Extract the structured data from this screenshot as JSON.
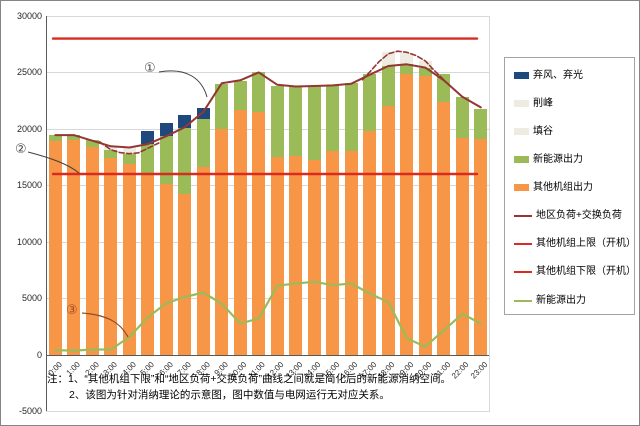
{
  "figure": {
    "kind": "excel-style combo chart (new energy accommodation schematic)"
  },
  "colors": {
    "curtail_blue": "#1F497D",
    "cream_fill": "#EEECE1",
    "newenergy_green": "#9BBB59",
    "other_orange": "#F79646",
    "load_maroon": "#943634",
    "limit_red": "#D92B20",
    "gridline": "#D8D8D8",
    "axis": "#595959",
    "text": "#262626"
  },
  "y_axis": {
    "min": -5000,
    "max": 30000,
    "step": 5000,
    "ticks": [
      "30000",
      "25000",
      "20000",
      "15000",
      "10000",
      "5000",
      "0",
      "-5000"
    ],
    "tick_values": [
      30000,
      25000,
      20000,
      15000,
      10000,
      5000,
      0,
      -5000
    ]
  },
  "x_axis": {
    "categories": [
      "0:00",
      "1:00",
      "2:00",
      "3:00",
      "4:00",
      "5:00",
      "6:00",
      "7:00",
      "8:00",
      "9:00",
      "10:00",
      "11:00",
      "12:00",
      "13:00",
      "14:00",
      "15:00",
      "16:00",
      "17:00",
      "18:00",
      "19:00",
      "20:00",
      "21:00",
      "22:00",
      "23:00"
    ]
  },
  "legend": {
    "items": [
      {
        "label": "弃风、弃光",
        "swatch": "bar",
        "color": "#1F497D"
      },
      {
        "label": "削峰",
        "swatch": "bar",
        "color": "#EEECE1"
      },
      {
        "label": "填谷",
        "swatch": "bar",
        "color": "#EEECE1"
      },
      {
        "label": "新能源出力",
        "swatch": "bar",
        "color": "#9BBB59"
      },
      {
        "label": "其他机组出力",
        "swatch": "bar",
        "color": "#F79646"
      },
      {
        "label": "地区负荷+交换负荷",
        "swatch": "line",
        "color": "#943634"
      },
      {
        "label": "其他机组上限（开机）",
        "swatch": "line",
        "color": "#D92B20"
      },
      {
        "label": "其他机组下限（开机）",
        "swatch": "line",
        "color": "#D92B20"
      },
      {
        "label": "新能源出力",
        "swatch": "line",
        "color": "#9BBB59"
      }
    ]
  },
  "notes": {
    "line1": "注：1、“其他机组下限”和“地区负荷+交换负荷”曲线之间就是简化后的新能源消纳空间。",
    "line2": "2、该图为针对消纳理论的示意图，图中数值与电网运行无对应关系。"
  },
  "annotations": [
    {
      "label": "①",
      "points_to": "地区负荷+交换负荷曲线"
    },
    {
      "label": "②",
      "points_to": "其他机组下限（开机）"
    },
    {
      "label": "③",
      "points_to": "新能源出力曲线"
    }
  ],
  "chart_data": {
    "type": "combo-stacked-bar-line",
    "ylim": [
      -5000,
      30000
    ],
    "grid": true,
    "legend_position": "right",
    "categories": [
      "0:00",
      "1:00",
      "2:00",
      "3:00",
      "4:00",
      "5:00",
      "6:00",
      "7:00",
      "8:00",
      "9:00",
      "10:00",
      "11:00",
      "12:00",
      "13:00",
      "14:00",
      "15:00",
      "16:00",
      "17:00",
      "18:00",
      "19:00",
      "20:00",
      "21:00",
      "22:00",
      "23:00"
    ],
    "series": [
      {
        "name": "其他机组出力",
        "type": "bar",
        "stack": "output",
        "color": "#F79646",
        "values": [
          18900,
          19000,
          18400,
          17400,
          16900,
          16100,
          15100,
          14200,
          16600,
          20000,
          21650,
          21450,
          17500,
          17600,
          17200,
          18000,
          18050,
          19800,
          22000,
          24830,
          24700,
          22400,
          19150,
          19100
        ]
      },
      {
        "name": "新能源出力",
        "type": "bar",
        "stack": "output",
        "color": "#9BBB59",
        "values": [
          550,
          500,
          650,
          750,
          900,
          2550,
          4300,
          5900,
          4250,
          4000,
          2600,
          3550,
          6300,
          6200,
          6600,
          5900,
          6050,
          5100,
          3570,
          890,
          730,
          2500,
          3700,
          2700
        ]
      },
      {
        "name": "弃风、弃光",
        "type": "bar",
        "stack": "output",
        "color": "#1F497D",
        "values": [
          0,
          0,
          0,
          0,
          0,
          1150,
          1150,
          1150,
          1000,
          0,
          0,
          0,
          0,
          0,
          0,
          0,
          0,
          0,
          0,
          0,
          0,
          0,
          0,
          0
        ]
      },
      {
        "name": "填谷",
        "type": "bar",
        "stack": "output",
        "color": "#EEECE1",
        "values": [
          0,
          0,
          0,
          300,
          550,
          0,
          0,
          0,
          0,
          0,
          0,
          0,
          0,
          0,
          0,
          0,
          0,
          0,
          0,
          0,
          0,
          0,
          0,
          0
        ]
      },
      {
        "name": "削峰",
        "type": "bar",
        "stack": "output",
        "color": "#EEECE1",
        "values": [
          0,
          0,
          0,
          0,
          0,
          0,
          0,
          0,
          0,
          0,
          0,
          0,
          0,
          0,
          0,
          0,
          0,
          0,
          1230,
          1030,
          570,
          0,
          0,
          0
        ]
      },
      {
        "name": "地区负荷+交换负荷",
        "type": "line",
        "color": "#943634",
        "values": [
          19450,
          19450,
          18950,
          18450,
          18350,
          18650,
          19350,
          20150,
          21500,
          24050,
          24300,
          25000,
          23900,
          23750,
          23800,
          23850,
          24000,
          24800,
          25570,
          25720,
          25430,
          24300,
          22850,
          21900
        ]
      },
      {
        "name": "其他机组上限（开机）",
        "type": "line",
        "color": "#D92B20",
        "constant": 28000
      },
      {
        "name": "其他机组下限（开机）",
        "type": "line",
        "color": "#D92B20",
        "constant": 16000
      },
      {
        "name": "新能源出力",
        "type": "line",
        "color": "#9BBB59",
        "values": [
          400,
          350,
          450,
          450,
          1550,
          3300,
          4550,
          5100,
          5500,
          4500,
          2750,
          3200,
          6100,
          6300,
          6450,
          6150,
          6300,
          5400,
          4650,
          1450,
          700,
          2150,
          3600,
          2750
        ]
      }
    ],
    "load_dashed_segments": [
      {
        "points": [
          [
            2.4,
            18850
          ],
          [
            3,
            18150
          ],
          [
            3.5,
            17900
          ],
          [
            4,
            17800
          ],
          [
            4.5,
            17880
          ],
          [
            5,
            18280
          ],
          [
            5.6,
            18750
          ]
        ]
      },
      {
        "points": [
          [
            16.6,
            24350
          ],
          [
            17,
            25050
          ],
          [
            17.5,
            25950
          ],
          [
            18,
            26650
          ],
          [
            18.5,
            26880
          ],
          [
            19,
            26780
          ],
          [
            19.5,
            26500
          ],
          [
            20,
            26020
          ],
          [
            20.5,
            25150
          ],
          [
            21,
            24350
          ]
        ]
      }
    ]
  }
}
